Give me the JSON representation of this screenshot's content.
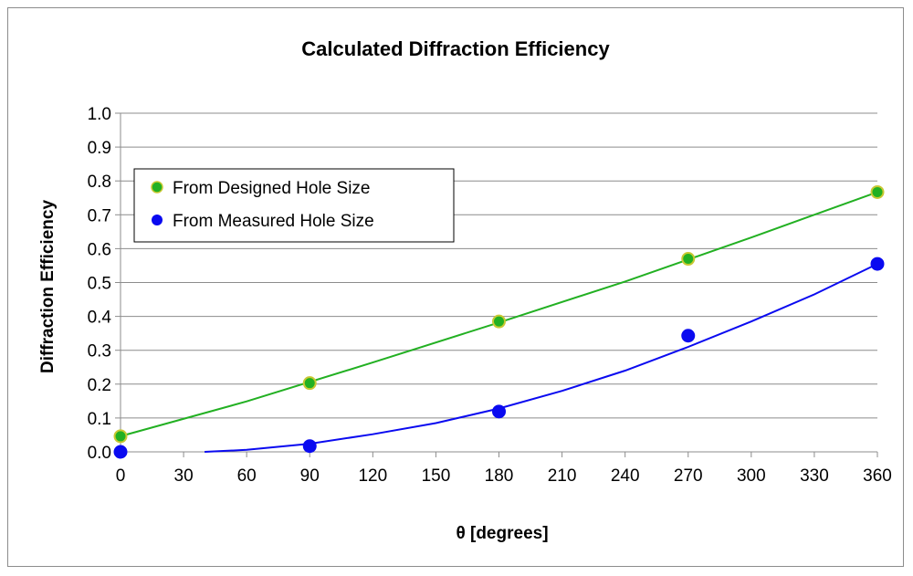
{
  "chart_data": {
    "type": "scatter",
    "title": "Calculated Diffraction Efficiency",
    "xlabel": "θ  [degrees]",
    "ylabel": "Diffraction Efficiency",
    "xlim": [
      0,
      360
    ],
    "ylim": [
      0,
      1.0
    ],
    "x_ticks": [
      "0",
      "30",
      "60",
      "90",
      "120",
      "150",
      "180",
      "210",
      "240",
      "270",
      "300",
      "330",
      "360"
    ],
    "y_ticks": [
      "0.0",
      "0.1",
      "0.2",
      "0.3",
      "0.4",
      "0.5",
      "0.6",
      "0.7",
      "0.8",
      "0.9",
      "1.0"
    ],
    "grid": "horizontal",
    "legend_position": "upper-left",
    "series": [
      {
        "name": "From Designed Hole Size",
        "color": "#22b022",
        "edge_color": "#c8c832",
        "x": [
          0,
          90,
          180,
          270,
          360
        ],
        "y": [
          0.046,
          0.203,
          0.385,
          0.57,
          0.767
        ],
        "trend": {
          "x": [
            0,
            60,
            120,
            180,
            240,
            300,
            360
          ],
          "y": [
            0.046,
            0.149,
            0.264,
            0.382,
            0.503,
            0.633,
            0.767
          ]
        }
      },
      {
        "name": "From Measured Hole Size",
        "color": "#0a0af0",
        "edge_color": "#0a0af0",
        "x": [
          0,
          90,
          180,
          270,
          360
        ],
        "y": [
          0.0,
          0.017,
          0.119,
          0.343,
          0.555
        ],
        "trend": {
          "x": [
            40,
            60,
            90,
            120,
            150,
            180,
            210,
            240,
            270,
            300,
            330,
            360
          ],
          "y": [
            0.0,
            0.006,
            0.024,
            0.052,
            0.085,
            0.128,
            0.18,
            0.24,
            0.31,
            0.385,
            0.465,
            0.555
          ]
        }
      }
    ]
  }
}
